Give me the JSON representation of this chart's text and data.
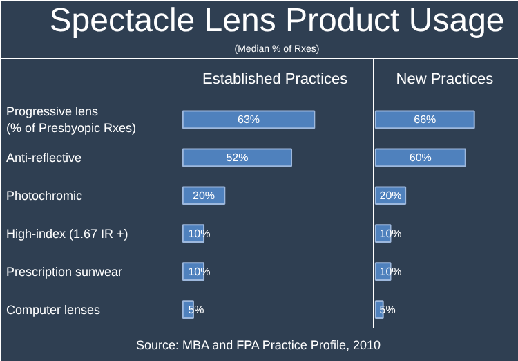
{
  "chart_data": [
    {
      "type": "bar",
      "orientation": "horizontal",
      "title": "Established Practices",
      "categories": [
        "Progressive lens\n(% of Presbyopic Rxes)",
        "Anti-reflective",
        "Photochromic",
        "High-index (1.67 IR +)",
        "Prescription sunwear",
        "Computer lenses"
      ],
      "values": [
        63,
        52,
        20,
        10,
        10,
        5
      ],
      "value_labels": [
        "63%",
        "52%",
        "20%",
        "10%",
        "10%",
        "5%"
      ],
      "color": "#4f81bd",
      "annotations": [
        "Spectacle Lens Product Usage",
        "(Median % of Rxes)",
        "Source: MBA and FPA Practice Profile, 2010"
      ]
    },
    {
      "type": "bar",
      "orientation": "horizontal",
      "title": "New Practices",
      "categories": [
        "Progressive lens\n(% of Presbyopic Rxes)",
        "Anti-reflective",
        "Photochromic",
        "High-index (1.67 IR +)",
        "Prescription sunwear",
        "Computer lenses"
      ],
      "values": [
        66,
        60,
        20,
        10,
        10,
        5
      ],
      "value_labels": [
        "66%",
        "60%",
        "20%",
        "10%",
        "10%",
        "5%"
      ],
      "color": "#4f81bd",
      "tick_labels": false
    }
  ]
}
